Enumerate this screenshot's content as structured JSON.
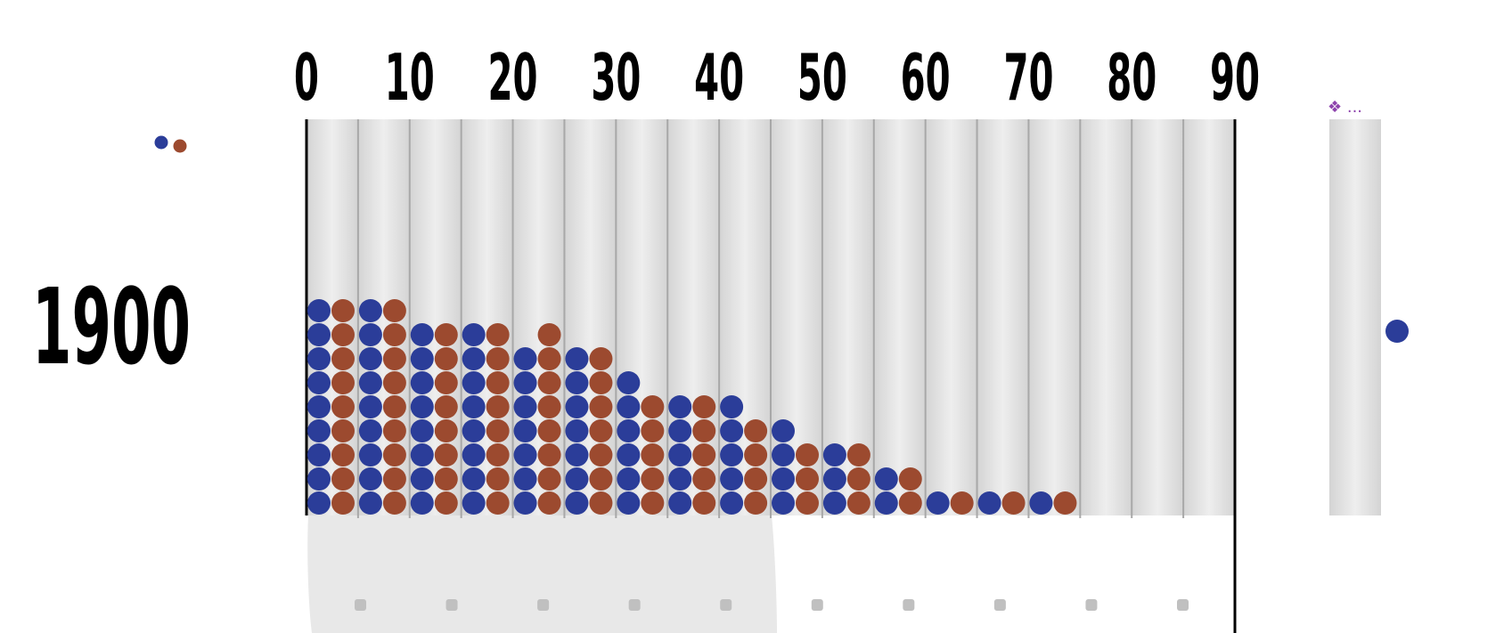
{
  "chart_data": {
    "type": "dot-histogram",
    "title": "",
    "xlabel": "",
    "ylabel": "",
    "year": "1900",
    "x_ticks": [
      "0",
      "10",
      "20",
      "30",
      "40",
      "50",
      "60",
      "70",
      "80",
      "90"
    ],
    "xlim": [
      0,
      90
    ],
    "bin_width": 5,
    "bins": [
      0,
      5,
      10,
      15,
      20,
      25,
      30,
      35,
      40,
      45,
      50,
      55,
      60,
      65,
      70,
      75,
      80,
      85
    ],
    "grid": true,
    "legend_placement": "top-left",
    "series": [
      {
        "color": "#2b3d99",
        "values": [
          9,
          9,
          8,
          8,
          7,
          7,
          6,
          5,
          5,
          4,
          3,
          2,
          1,
          1,
          1,
          0,
          0,
          0
        ]
      },
      {
        "color": "#9c4a2f",
        "values": [
          9,
          9,
          8,
          8,
          8,
          7,
          5,
          5,
          4,
          3,
          3,
          2,
          1,
          1,
          1,
          0,
          0,
          0
        ]
      }
    ],
    "overflow_column": {
      "marker": "❖ ...",
      "series_1_dots": 1
    },
    "placeholder_ticks": 10
  }
}
